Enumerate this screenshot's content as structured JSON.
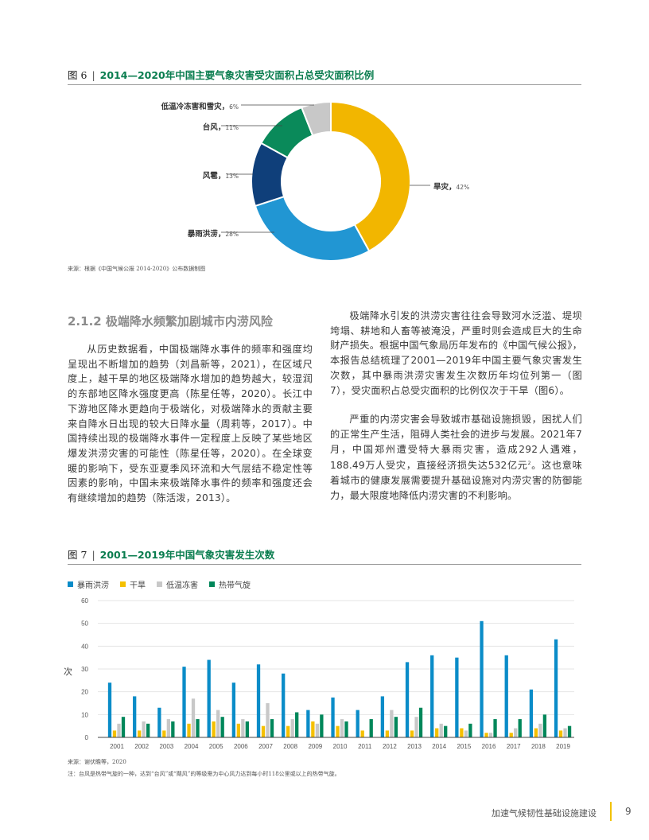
{
  "figure6": {
    "number_label": "图 6",
    "title": "2014—2020年中国主要气象灾害受灾面积占总受灾面积比例",
    "source": "来源：根据《中国气候公报 2014-2020》公布数据制图",
    "chart_data": {
      "type": "pie",
      "donut": true,
      "slices": [
        {
          "label": "旱灾",
          "value": 42,
          "display": "42%",
          "color": "#f2b600"
        },
        {
          "label": "暴雨洪涝",
          "value": 28,
          "display": "28%",
          "color": "#2196d3"
        },
        {
          "label": "风雹",
          "value": 13,
          "display": "13%",
          "color": "#0f3f7a"
        },
        {
          "label": "台风",
          "value": 11,
          "display": "11%",
          "color": "#0a8a5a"
        },
        {
          "label": "低温冷冻害和雪灾",
          "value": 6,
          "display": "6%",
          "color": "#c8c8c8"
        }
      ]
    }
  },
  "section": {
    "heading": "2.1.2 极端降水频繁加剧城市内涝风险",
    "left_paragraph": "从历史数据看，中国极端降水事件的频率和强度均呈现出不断增加的趋势（刘昌新等，2021），在区域尺度上，越干旱的地区极端降水增加的趋势越大，较湿润的东部地区降水强度更高（陈星任等，2020）。长江中下游地区降水更趋向于极端化，对极端降水的贡献主要来自降水日出现的较大日降水量（周莉等，2017）。中国持续出现的极端降水事件一定程度上反映了某些地区爆发洪涝灾害的可能性（陈星任等，2020）。在全球变暖的影响下，受东亚夏季风环流和大气层结不稳定性等因素的影响，中国未来极端降水事件的频率和强度还会有继续增加的趋势（陈活泼，2013）。",
    "right_paragraph_1": "极端降水引发的洪涝灾害往往会导致河水泛滥、堤坝垮塌、耕地和人畜等被淹没，严重时则会造成巨大的生命财产损失。根据中国气象局历年发布的《中国气候公报》，本报告总结梳理了2001—2019年中国主要气象灾害发生次数，其中暴雨洪涝灾害发生次数历年均位列第一（图7），受灾面积占总受灾面积的比例仅次于干旱（图6）。",
    "right_paragraph_2a": "严重的内涝灾害会导致城市基础设施损毁，困扰人们的正常生产生活，阻碍人类社会的进步与发展。2021年7月，中国郑州遭受特大暴雨灾害，造成292人遇难，188.49万人受灾，直接经济损失达532亿元",
    "right_paragraph_2_footnote": "2",
    "right_paragraph_2b": "。这也意味着城市的健康发展需要提升基础设施对内涝灾害的防御能力，最大限度地降低内涝灾害的不利影响。"
  },
  "figure7": {
    "number_label": "图 7",
    "title": "2001—2019年中国气象灾害发生次数",
    "source": "来源：谢伏瞻等，2020",
    "note": "注：台风是热带气旋的一种，达到“台风”或“飓风”的等级需为中心风力达到每小时118公里或以上的热带气旋。",
    "chart_data": {
      "type": "bar",
      "ylabel": "次",
      "ylim": [
        0,
        60
      ],
      "yticks": [
        "0",
        "10",
        "20",
        "30",
        "40",
        "50",
        "60"
      ],
      "grid": true,
      "legend_position": "top-left",
      "categories": [
        "2001",
        "2002",
        "2003",
        "2004",
        "2005",
        "2006",
        "2007",
        "2008",
        "2009",
        "2010",
        "2011",
        "2012",
        "2013",
        "2014",
        "2015",
        "2016",
        "2017",
        "2018",
        "2019"
      ],
      "series": [
        {
          "name": "暴雨洪涝",
          "color": "#0a8cc8",
          "values": [
            24,
            18,
            13,
            31,
            34,
            24,
            32,
            28,
            12,
            17.5,
            12,
            18,
            33,
            36,
            35,
            51,
            36,
            21,
            43
          ]
        },
        {
          "name": "干旱",
          "color": "#f5c000",
          "values": [
            3,
            3,
            3,
            6,
            7,
            6,
            5,
            5,
            7,
            5,
            3,
            3,
            3,
            4,
            4,
            2,
            2,
            4,
            3
          ]
        },
        {
          "name": "低温冻害",
          "color": "#c8c8c8",
          "values": [
            6,
            7,
            8,
            17,
            12,
            8,
            15,
            8,
            6,
            8,
            0,
            12,
            9,
            6,
            3,
            2,
            4,
            6,
            4
          ]
        },
        {
          "name": "热带气旋",
          "color": "#00875a",
          "values": [
            9,
            6,
            7,
            8,
            9,
            7,
            8,
            11,
            10,
            7,
            8,
            9,
            13,
            5,
            6,
            8,
            8,
            10,
            5
          ]
        }
      ]
    }
  },
  "footer": {
    "title": "加速气候韧性基础设施建设",
    "page": "9"
  }
}
